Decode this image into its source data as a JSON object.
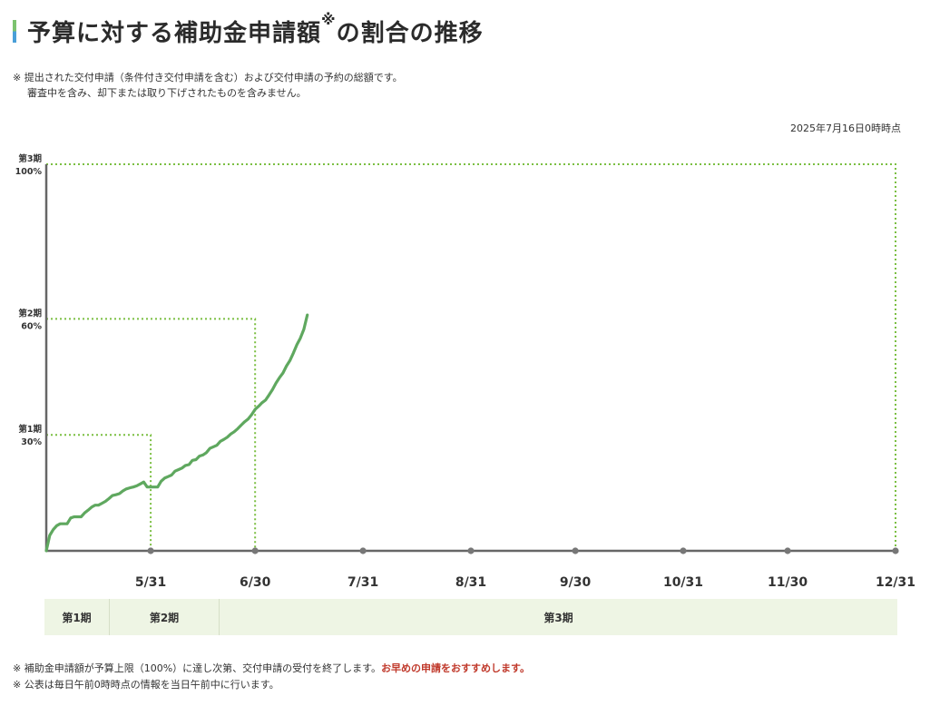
{
  "header": {
    "title": "予算に対する補助金申請額",
    "title_mark": "※",
    "title_suffix": "の割合の推移"
  },
  "notes_top": [
    "※ 提出された交付申請（条件付き交付申請を含む）および交付申請の予約の総額です。",
    "審査中を含み、却下または取り下げされたものを含みません。"
  ],
  "as_of": "2025年7月16日0時時点",
  "phases": [
    "第1期",
    "第2期",
    "第3期"
  ],
  "notes_bottom": {
    "line1_text": "※ 補助金申請額が予算上限（100%）に達し次第、交付申請の受付を終了します。",
    "line1_emphasis": "お早めの申請をおすすめします。",
    "line2": "※ 公表は毎日午前0時時点の情報を当日午前中に行います。"
  },
  "colors": {
    "line": "#5fa85f",
    "threshold": "#7bbf42",
    "axis": "#666666",
    "phase_bg": "#eef5e4",
    "emphasis": "#c0392b"
  },
  "chart_data": {
    "type": "line",
    "title": "",
    "xlabel": "",
    "ylabel": "",
    "x_start": "05/01",
    "x_end": "12/31",
    "ylim": [
      0,
      100
    ],
    "x_ticks": [
      {
        "date": "05/31",
        "label": "5/31"
      },
      {
        "date": "06/30",
        "label": "6/30"
      },
      {
        "date": "07/31",
        "label": "7/31"
      },
      {
        "date": "08/31",
        "label": "8/31"
      },
      {
        "date": "09/30",
        "label": "9/30"
      },
      {
        "date": "10/31",
        "label": "10/31"
      },
      {
        "date": "11/30",
        "label": "11/30"
      },
      {
        "date": "12/31",
        "label": "12/31"
      }
    ],
    "thresholds": [
      {
        "phase": "第1期",
        "value": 30,
        "label": "30%",
        "end": "05/31"
      },
      {
        "phase": "第2期",
        "value": 60,
        "label": "60%",
        "end": "06/30"
      },
      {
        "phase": "第3期",
        "value": 100,
        "label": "100%",
        "end": "12/31"
      }
    ],
    "series": [
      {
        "points": [
          [
            "05/01",
            0.0
          ],
          [
            "05/02",
            4.0
          ],
          [
            "05/03",
            5.5
          ],
          [
            "05/04",
            6.5
          ],
          [
            "05/05",
            7.0
          ],
          [
            "05/06",
            7.0
          ],
          [
            "05/07",
            7.0
          ],
          [
            "05/08",
            8.5
          ],
          [
            "05/09",
            8.8
          ],
          [
            "05/10",
            8.8
          ],
          [
            "05/11",
            8.8
          ],
          [
            "05/12",
            9.8
          ],
          [
            "05/13",
            10.5
          ],
          [
            "05/14",
            11.3
          ],
          [
            "05/15",
            11.8
          ],
          [
            "05/16",
            11.8
          ],
          [
            "05/17",
            12.3
          ],
          [
            "05/18",
            12.8
          ],
          [
            "05/19",
            13.5
          ],
          [
            "05/20",
            14.3
          ],
          [
            "05/21",
            14.5
          ],
          [
            "05/22",
            14.8
          ],
          [
            "05/23",
            15.5
          ],
          [
            "05/24",
            16.0
          ],
          [
            "05/25",
            16.3
          ],
          [
            "05/26",
            16.5
          ],
          [
            "05/27",
            16.8
          ],
          [
            "05/28",
            17.3
          ],
          [
            "05/29",
            17.8
          ],
          [
            "05/30",
            16.5
          ],
          [
            "05/31",
            16.5
          ],
          [
            "06/01",
            16.5
          ],
          [
            "06/02",
            16.5
          ],
          [
            "06/03",
            18.0
          ],
          [
            "06/04",
            18.8
          ],
          [
            "06/05",
            19.2
          ],
          [
            "06/06",
            19.6
          ],
          [
            "06/07",
            20.6
          ],
          [
            "06/08",
            21.0
          ],
          [
            "06/09",
            21.4
          ],
          [
            "06/10",
            22.1
          ],
          [
            "06/11",
            22.3
          ],
          [
            "06/12",
            23.4
          ],
          [
            "06/13",
            23.6
          ],
          [
            "06/14",
            24.5
          ],
          [
            "06/15",
            24.8
          ],
          [
            "06/16",
            25.4
          ],
          [
            "06/17",
            26.5
          ],
          [
            "06/18",
            26.9
          ],
          [
            "06/19",
            27.3
          ],
          [
            "06/20",
            28.3
          ],
          [
            "06/21",
            28.8
          ],
          [
            "06/22",
            29.4
          ],
          [
            "06/23",
            30.2
          ],
          [
            "06/24",
            30.8
          ],
          [
            "06/25",
            31.6
          ],
          [
            "06/26",
            32.5
          ],
          [
            "06/27",
            33.4
          ],
          [
            "06/28",
            34.1
          ],
          [
            "06/29",
            35.2
          ],
          [
            "06/30",
            36.6
          ],
          [
            "07/01",
            37.4
          ],
          [
            "07/02",
            38.3
          ],
          [
            "07/03",
            39.0
          ],
          [
            "07/04",
            40.3
          ],
          [
            "07/05",
            41.7
          ],
          [
            "07/06",
            43.4
          ],
          [
            "07/07",
            44.8
          ],
          [
            "07/08",
            46.0
          ],
          [
            "07/09",
            47.8
          ],
          [
            "07/10",
            49.2
          ],
          [
            "07/11",
            51.2
          ],
          [
            "07/12",
            53.3
          ],
          [
            "07/13",
            55.0
          ],
          [
            "07/14",
            57.3
          ],
          [
            "07/15",
            61.0
          ]
        ]
      }
    ]
  }
}
